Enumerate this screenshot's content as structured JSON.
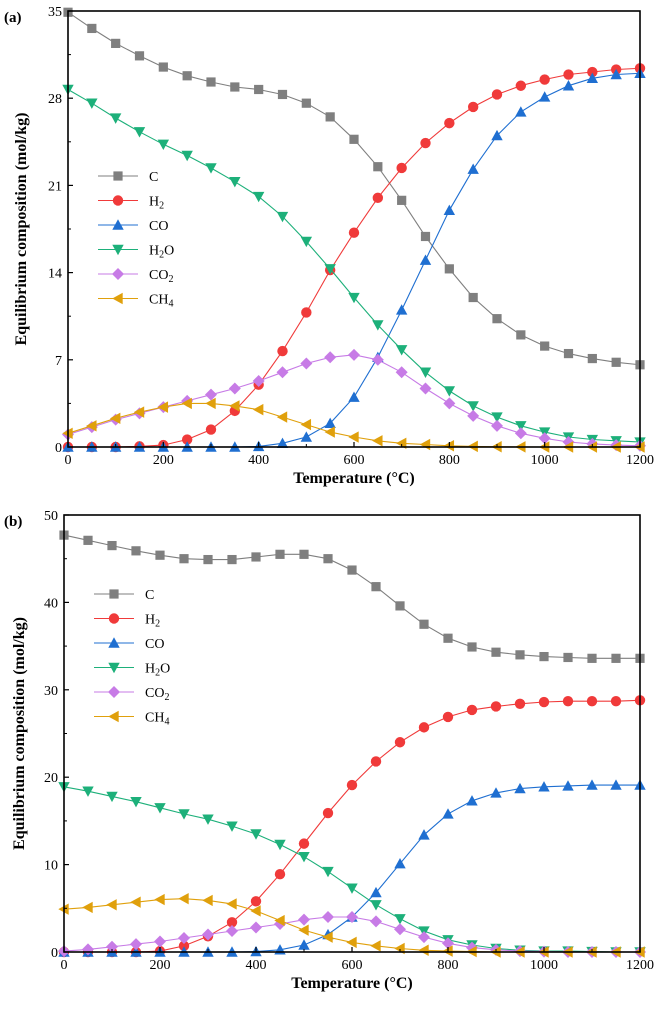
{
  "chart_data": [
    {
      "panel": "(a)",
      "type": "line",
      "xlabel": "Temperature (°C)",
      "ylabel": "Equilibrium composition (mol/kg)",
      "xlim": [
        0,
        1200
      ],
      "ylim": [
        0,
        35
      ],
      "xticks": [
        0,
        200,
        400,
        600,
        800,
        1000,
        1200
      ],
      "yticks": [
        0,
        7,
        14,
        21,
        28,
        35
      ],
      "grid": false,
      "legend_position": "left-middle",
      "x": [
        0,
        50,
        100,
        150,
        200,
        250,
        300,
        350,
        400,
        450,
        500,
        550,
        600,
        650,
        700,
        750,
        800,
        850,
        900,
        950,
        1000,
        1050,
        1100,
        1150,
        1200
      ],
      "series": [
        {
          "name": "C",
          "sub": "",
          "marker": "square",
          "color": "#7f7f7f",
          "values": [
            34.9,
            33.6,
            32.4,
            31.4,
            30.5,
            29.8,
            29.3,
            28.9,
            28.7,
            28.3,
            27.6,
            26.5,
            24.7,
            22.5,
            19.8,
            16.9,
            14.3,
            12.0,
            10.3,
            9.0,
            8.1,
            7.5,
            7.1,
            6.8,
            6.6
          ]
        },
        {
          "name": "H",
          "sub": "2",
          "marker": "circle",
          "color": "#f03a3a",
          "values": [
            0,
            0,
            0,
            0.05,
            0.15,
            0.6,
            1.4,
            2.9,
            5.0,
            7.7,
            10.8,
            14.2,
            17.2,
            20.0,
            22.4,
            24.4,
            26.0,
            27.3,
            28.3,
            29.0,
            29.5,
            29.9,
            30.1,
            30.3,
            30.4
          ]
        },
        {
          "name": "CO",
          "sub": "",
          "marker": "triangle-up",
          "color": "#1f6fd1",
          "values": [
            0,
            0,
            0,
            0,
            0,
            0,
            0,
            0,
            0.05,
            0.3,
            0.8,
            1.9,
            4.0,
            7.2,
            11.0,
            15.0,
            19.0,
            22.3,
            25.0,
            26.9,
            28.1,
            29.0,
            29.6,
            29.9,
            30.0
          ]
        },
        {
          "name": "H",
          "sub": "2",
          "suffix": "O",
          "marker": "triangle-down",
          "color": "#1db07a",
          "values": [
            28.7,
            27.6,
            26.4,
            25.3,
            24.3,
            23.4,
            22.4,
            21.3,
            20.1,
            18.5,
            16.5,
            14.3,
            12.0,
            9.8,
            7.8,
            6.0,
            4.5,
            3.3,
            2.4,
            1.7,
            1.2,
            0.8,
            0.6,
            0.5,
            0.4
          ]
        },
        {
          "name": "CO",
          "sub": "2",
          "marker": "diamond",
          "color": "#c77be6",
          "values": [
            1.0,
            1.6,
            2.2,
            2.7,
            3.2,
            3.7,
            4.2,
            4.7,
            5.3,
            6.0,
            6.7,
            7.2,
            7.4,
            7.0,
            6.0,
            4.7,
            3.5,
            2.5,
            1.7,
            1.1,
            0.7,
            0.4,
            0.25,
            0.15,
            0.1
          ]
        },
        {
          "name": "CH",
          "sub": "4",
          "marker": "triangle-left",
          "color": "#e0a00c",
          "values": [
            1.1,
            1.7,
            2.3,
            2.8,
            3.2,
            3.5,
            3.5,
            3.3,
            3.0,
            2.4,
            1.8,
            1.2,
            0.8,
            0.5,
            0.3,
            0.2,
            0.1,
            0.05,
            0.02,
            0.01,
            0,
            0,
            0,
            0,
            0
          ]
        }
      ]
    },
    {
      "panel": "(b)",
      "type": "line",
      "xlabel": "Temperature (°C)",
      "ylabel": "Equilibrium composition (mol/kg)",
      "xlim": [
        0,
        1200
      ],
      "ylim": [
        0,
        50
      ],
      "xticks": [
        0,
        200,
        400,
        600,
        800,
        1000,
        1200
      ],
      "yticks": [
        0,
        10,
        20,
        30,
        40,
        50
      ],
      "grid": false,
      "legend_position": "top-left",
      "x": [
        0,
        50,
        100,
        150,
        200,
        250,
        300,
        350,
        400,
        450,
        500,
        550,
        600,
        650,
        700,
        750,
        800,
        850,
        900,
        950,
        1000,
        1050,
        1100,
        1150,
        1200
      ],
      "series": [
        {
          "name": "C",
          "sub": "",
          "marker": "square",
          "color": "#7f7f7f",
          "values": [
            47.7,
            47.1,
            46.5,
            45.9,
            45.4,
            45.0,
            44.9,
            44.9,
            45.2,
            45.5,
            45.5,
            45.0,
            43.7,
            41.8,
            39.6,
            37.5,
            35.9,
            34.9,
            34.3,
            34.0,
            33.8,
            33.7,
            33.6,
            33.6,
            33.6
          ]
        },
        {
          "name": "H",
          "sub": "2",
          "marker": "circle",
          "color": "#f03a3a",
          "values": [
            0,
            0,
            0,
            0,
            0.1,
            0.7,
            1.8,
            3.4,
            5.8,
            8.9,
            12.4,
            15.9,
            19.1,
            21.8,
            24.0,
            25.7,
            26.9,
            27.7,
            28.1,
            28.4,
            28.6,
            28.7,
            28.7,
            28.7,
            28.8
          ]
        },
        {
          "name": "CO",
          "sub": "",
          "marker": "triangle-up",
          "color": "#1f6fd1",
          "values": [
            0,
            0,
            0,
            0,
            0,
            0,
            0,
            0,
            0.05,
            0.25,
            0.8,
            2.0,
            4.0,
            6.8,
            10.1,
            13.4,
            15.8,
            17.3,
            18.2,
            18.7,
            18.9,
            19.0,
            19.1,
            19.1,
            19.1
          ]
        },
        {
          "name": "H",
          "sub": "2",
          "suffix": "O",
          "marker": "triangle-down",
          "color": "#1db07a",
          "values": [
            18.9,
            18.4,
            17.8,
            17.2,
            16.5,
            15.8,
            15.2,
            14.4,
            13.5,
            12.3,
            10.9,
            9.2,
            7.3,
            5.4,
            3.8,
            2.4,
            1.4,
            0.8,
            0.4,
            0.2,
            0.1,
            0.1,
            0.05,
            0,
            0
          ]
        },
        {
          "name": "CO",
          "sub": "2",
          "marker": "diamond",
          "color": "#c77be6",
          "values": [
            0.1,
            0.3,
            0.6,
            0.9,
            1.2,
            1.6,
            2.0,
            2.4,
            2.8,
            3.2,
            3.7,
            4.0,
            4.0,
            3.5,
            2.6,
            1.7,
            1.0,
            0.5,
            0.25,
            0.1,
            0.05,
            0,
            0,
            0,
            0
          ]
        },
        {
          "name": "CH",
          "sub": "4",
          "marker": "triangle-left",
          "color": "#e0a00c",
          "values": [
            4.9,
            5.1,
            5.4,
            5.7,
            6.0,
            6.1,
            5.9,
            5.5,
            4.7,
            3.6,
            2.5,
            1.7,
            1.1,
            0.7,
            0.4,
            0.2,
            0.1,
            0.05,
            0,
            0,
            0,
            0,
            0,
            0,
            0
          ]
        }
      ]
    }
  ]
}
